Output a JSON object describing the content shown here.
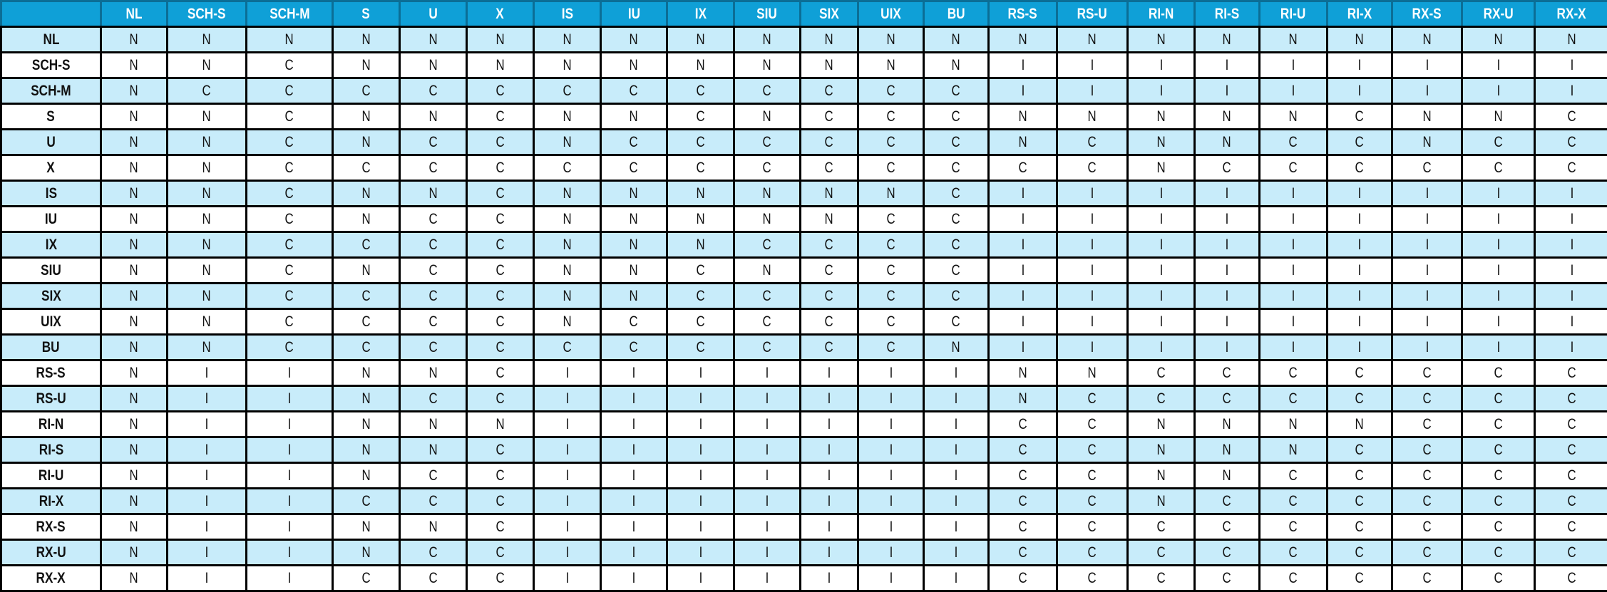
{
  "colors": {
    "header_bg": "#0fa0d7",
    "alt_row_bg": "#c8ecfa",
    "row_bg": "#ffffff"
  },
  "columns": [
    "NL",
    "SCH-S",
    "SCH-M",
    "S",
    "U",
    "X",
    "IS",
    "IU",
    "IX",
    "SIU",
    "SIX",
    "UIX",
    "BU",
    "RS-S",
    "RS-U",
    "RI-N",
    "RI-S",
    "RI-U",
    "RI-X",
    "RX-S",
    "RX-U",
    "RX-X"
  ],
  "rows": [
    {
      "label": "NL",
      "values": [
        "N",
        "N",
        "N",
        "N",
        "N",
        "N",
        "N",
        "N",
        "N",
        "N",
        "N",
        "N",
        "N",
        "N",
        "N",
        "N",
        "N",
        "N",
        "N",
        "N",
        "N",
        "N"
      ]
    },
    {
      "label": "SCH-S",
      "values": [
        "N",
        "N",
        "C",
        "N",
        "N",
        "N",
        "N",
        "N",
        "N",
        "N",
        "N",
        "N",
        "N",
        "I",
        "I",
        "I",
        "I",
        "I",
        "I",
        "I",
        "I",
        "I"
      ]
    },
    {
      "label": "SCH-M",
      "values": [
        "N",
        "C",
        "C",
        "C",
        "C",
        "C",
        "C",
        "C",
        "C",
        "C",
        "C",
        "C",
        "C",
        "I",
        "I",
        "I",
        "I",
        "I",
        "I",
        "I",
        "I",
        "I"
      ]
    },
    {
      "label": "S",
      "values": [
        "N",
        "N",
        "C",
        "N",
        "N",
        "C",
        "N",
        "N",
        "C",
        "N",
        "C",
        "C",
        "C",
        "N",
        "N",
        "N",
        "N",
        "N",
        "C",
        "N",
        "N",
        "C"
      ]
    },
    {
      "label": "U",
      "values": [
        "N",
        "N",
        "C",
        "N",
        "C",
        "C",
        "N",
        "C",
        "C",
        "C",
        "C",
        "C",
        "C",
        "N",
        "C",
        "N",
        "N",
        "C",
        "C",
        "N",
        "C",
        "C"
      ]
    },
    {
      "label": "X",
      "values": [
        "N",
        "N",
        "C",
        "C",
        "C",
        "C",
        "C",
        "C",
        "C",
        "C",
        "C",
        "C",
        "C",
        "C",
        "C",
        "N",
        "C",
        "C",
        "C",
        "C",
        "C",
        "C"
      ]
    },
    {
      "label": "IS",
      "values": [
        "N",
        "N",
        "C",
        "N",
        "N",
        "C",
        "N",
        "N",
        "N",
        "N",
        "N",
        "N",
        "C",
        "I",
        "I",
        "I",
        "I",
        "I",
        "I",
        "I",
        "I",
        "I"
      ]
    },
    {
      "label": "IU",
      "values": [
        "N",
        "N",
        "C",
        "N",
        "C",
        "C",
        "N",
        "N",
        "N",
        "N",
        "N",
        "C",
        "C",
        "I",
        "I",
        "I",
        "I",
        "I",
        "I",
        "I",
        "I",
        "I"
      ]
    },
    {
      "label": "IX",
      "values": [
        "N",
        "N",
        "C",
        "C",
        "C",
        "C",
        "N",
        "N",
        "N",
        "C",
        "C",
        "C",
        "C",
        "I",
        "I",
        "I",
        "I",
        "I",
        "I",
        "I",
        "I",
        "I"
      ]
    },
    {
      "label": "SIU",
      "values": [
        "N",
        "N",
        "C",
        "N",
        "C",
        "C",
        "N",
        "N",
        "C",
        "N",
        "C",
        "C",
        "C",
        "I",
        "I",
        "I",
        "I",
        "I",
        "I",
        "I",
        "I",
        "I"
      ]
    },
    {
      "label": "SIX",
      "values": [
        "N",
        "N",
        "C",
        "C",
        "C",
        "C",
        "N",
        "N",
        "C",
        "C",
        "C",
        "C",
        "C",
        "I",
        "I",
        "I",
        "I",
        "I",
        "I",
        "I",
        "I",
        "I"
      ]
    },
    {
      "label": "UIX",
      "values": [
        "N",
        "N",
        "C",
        "C",
        "C",
        "C",
        "N",
        "C",
        "C",
        "C",
        "C",
        "C",
        "C",
        "I",
        "I",
        "I",
        "I",
        "I",
        "I",
        "I",
        "I",
        "I"
      ]
    },
    {
      "label": "BU",
      "values": [
        "N",
        "N",
        "C",
        "C",
        "C",
        "C",
        "C",
        "C",
        "C",
        "C",
        "C",
        "C",
        "N",
        "I",
        "I",
        "I",
        "I",
        "I",
        "I",
        "I",
        "I",
        "I"
      ]
    },
    {
      "label": "RS-S",
      "values": [
        "N",
        "I",
        "I",
        "N",
        "N",
        "C",
        "I",
        "I",
        "I",
        "I",
        "I",
        "I",
        "I",
        "N",
        "N",
        "C",
        "C",
        "C",
        "C",
        "C",
        "C",
        "C"
      ]
    },
    {
      "label": "RS-U",
      "values": [
        "N",
        "I",
        "I",
        "N",
        "C",
        "C",
        "I",
        "I",
        "I",
        "I",
        "I",
        "I",
        "I",
        "N",
        "C",
        "C",
        "C",
        "C",
        "C",
        "C",
        "C",
        "C"
      ]
    },
    {
      "label": "RI-N",
      "values": [
        "N",
        "I",
        "I",
        "N",
        "N",
        "N",
        "I",
        "I",
        "I",
        "I",
        "I",
        "I",
        "I",
        "C",
        "C",
        "N",
        "N",
        "N",
        "N",
        "C",
        "C",
        "C"
      ]
    },
    {
      "label": "RI-S",
      "values": [
        "N",
        "I",
        "I",
        "N",
        "N",
        "C",
        "I",
        "I",
        "I",
        "I",
        "I",
        "I",
        "I",
        "C",
        "C",
        "N",
        "N",
        "N",
        "C",
        "C",
        "C",
        "C"
      ]
    },
    {
      "label": "RI-U",
      "values": [
        "N",
        "I",
        "I",
        "N",
        "C",
        "C",
        "I",
        "I",
        "I",
        "I",
        "I",
        "I",
        "I",
        "C",
        "C",
        "N",
        "N",
        "C",
        "C",
        "C",
        "C",
        "C"
      ]
    },
    {
      "label": "RI-X",
      "values": [
        "N",
        "I",
        "I",
        "C",
        "C",
        "C",
        "I",
        "I",
        "I",
        "I",
        "I",
        "I",
        "I",
        "C",
        "C",
        "N",
        "C",
        "C",
        "C",
        "C",
        "C",
        "C"
      ]
    },
    {
      "label": "RX-S",
      "values": [
        "N",
        "I",
        "I",
        "N",
        "N",
        "C",
        "I",
        "I",
        "I",
        "I",
        "I",
        "I",
        "I",
        "C",
        "C",
        "C",
        "C",
        "C",
        "C",
        "C",
        "C",
        "C"
      ]
    },
    {
      "label": "RX-U",
      "values": [
        "N",
        "I",
        "I",
        "N",
        "C",
        "C",
        "I",
        "I",
        "I",
        "I",
        "I",
        "I",
        "I",
        "C",
        "C",
        "C",
        "C",
        "C",
        "C",
        "C",
        "C",
        "C"
      ]
    },
    {
      "label": "RX-X",
      "values": [
        "N",
        "I",
        "I",
        "C",
        "C",
        "C",
        "I",
        "I",
        "I",
        "I",
        "I",
        "I",
        "I",
        "C",
        "C",
        "C",
        "C",
        "C",
        "C",
        "C",
        "C",
        "C"
      ]
    }
  ]
}
